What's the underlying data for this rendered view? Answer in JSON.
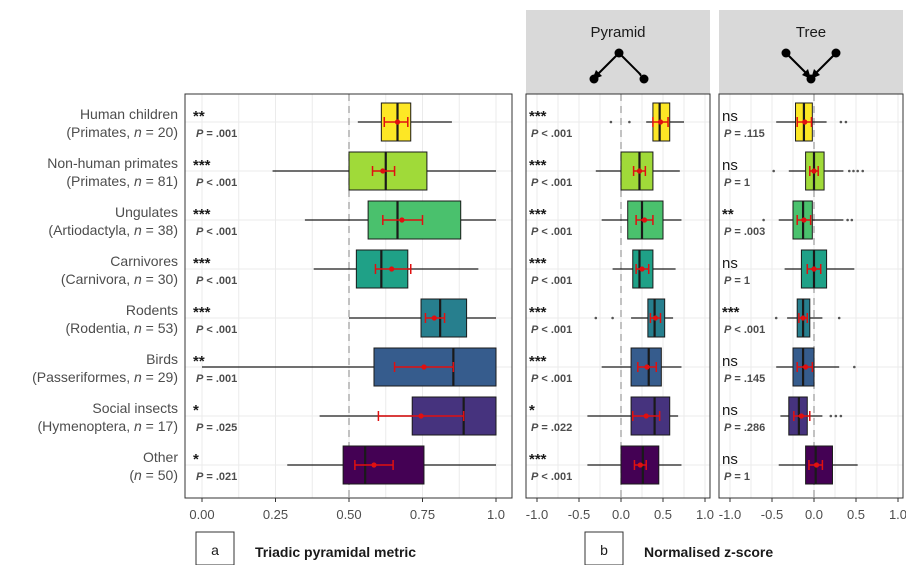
{
  "chart_data": [
    {
      "type": "box",
      "panel_label": "a",
      "xlabel": "Triadic pyramidal metric",
      "xlim": [
        0,
        1
      ],
      "xticks": [
        "0.00",
        "0.25",
        "0.50",
        "0.75",
        "1.0"
      ],
      "reference_line": 0.5,
      "categories": [
        {
          "name": "Human children",
          "group": "(Primates, ",
          "n": "n",
          "count": " = 20)",
          "sig": "**",
          "p": "P = .001",
          "whisker": [
            0.53,
            0.85
          ],
          "box": [
            0.61,
            0.71
          ],
          "median": 0.665,
          "mean": 0.665,
          "ci": [
            0.62,
            0.7
          ],
          "fill": "#fde725"
        },
        {
          "name": "Non-human primates",
          "group": "(Primates, ",
          "n": "n",
          "count": " = 81)",
          "sig": "***",
          "p": "P < .001",
          "whisker": [
            0.24,
            1.0
          ],
          "box": [
            0.5,
            0.765
          ],
          "median": 0.625,
          "mean": 0.615,
          "ci": [
            0.58,
            0.655
          ],
          "fill": "#a0da39"
        },
        {
          "name": "Ungulates",
          "group": "(Artiodactyla, ",
          "n": "n",
          "count": " = 38)",
          "sig": "***",
          "p": "P < .001",
          "whisker": [
            0.35,
            1.0
          ],
          "box": [
            0.565,
            0.88
          ],
          "median": 0.665,
          "mean": 0.68,
          "ci": [
            0.615,
            0.75
          ],
          "fill": "#4ac16d"
        },
        {
          "name": "Carnivores",
          "group": "(Carnivora, ",
          "n": "n",
          "count": " = 30)",
          "sig": "***",
          "p": "P < .001",
          "whisker": [
            0.38,
            0.94
          ],
          "box": [
            0.525,
            0.7
          ],
          "median": 0.61,
          "mean": 0.645,
          "ci": [
            0.59,
            0.71
          ],
          "fill": "#1fa187"
        },
        {
          "name": "Rodents",
          "group": "(Rodentia, ",
          "n": "n",
          "count": " = 53)",
          "sig": "***",
          "p": "P < .001",
          "whisker": [
            0.5,
            1.0
          ],
          "box": [
            0.745,
            0.9
          ],
          "median": 0.81,
          "mean": 0.79,
          "ci": [
            0.76,
            0.825
          ],
          "fill": "#277f8e"
        },
        {
          "name": "Birds",
          "group": "(Passeriformes, ",
          "n": "n",
          "count": " = 29)",
          "sig": "**",
          "p": "P = .001",
          "whisker": [
            0.0,
            1.0
          ],
          "box": [
            0.585,
            1.0
          ],
          "median": 0.855,
          "mean": 0.755,
          "ci": [
            0.655,
            0.855
          ],
          "fill": "#365c8d"
        },
        {
          "name": "Social insects",
          "group": "(Hymenoptera, ",
          "n": "n",
          "count": " = 17)",
          "sig": "*",
          "p": "P = .025",
          "whisker": [
            0.4,
            1.0
          ],
          "box": [
            0.715,
            1.0
          ],
          "median": 0.89,
          "mean": 0.745,
          "ci": [
            0.6,
            0.89
          ],
          "fill": "#46337e"
        },
        {
          "name": "Other",
          "group": "(",
          "n": "n",
          "count": " = 50)",
          "sig": "*",
          "p": "P = .021",
          "whisker": [
            0.29,
            1.0
          ],
          "box": [
            0.48,
            0.755
          ],
          "median": 0.555,
          "mean": 0.585,
          "ci": [
            0.52,
            0.65
          ],
          "fill": "#440154"
        }
      ]
    },
    {
      "type": "box",
      "panel_label": "b",
      "xlabel": "Normalised z-score",
      "facet": "Pyramid",
      "xlim": [
        -1.1,
        1.15
      ],
      "xticks": [
        "-1.0",
        "-0.5",
        "0.0",
        "0.5",
        "1.0"
      ],
      "reference_line": 0.0,
      "rows": [
        {
          "sig": "***",
          "p": "P < .001",
          "whisker": [
            0.3,
            0.75
          ],
          "box": [
            0.38,
            0.58
          ],
          "median": 0.46,
          "mean": 0.47,
          "ci": [
            0.38,
            0.56
          ],
          "outliers": [
            -0.12,
            0.1
          ],
          "fill": "#fde725"
        },
        {
          "sig": "***",
          "p": "P < .001",
          "whisker": [
            -0.3,
            0.7
          ],
          "box": [
            0.0,
            0.38
          ],
          "median": 0.22,
          "mean": 0.22,
          "ci": [
            0.15,
            0.29
          ],
          "outliers": [],
          "fill": "#a0da39"
        },
        {
          "sig": "***",
          "p": "P < .001",
          "whisker": [
            -0.23,
            0.72
          ],
          "box": [
            0.08,
            0.5
          ],
          "median": 0.25,
          "mean": 0.28,
          "ci": [
            0.18,
            0.38
          ],
          "outliers": [],
          "fill": "#4ac16d"
        },
        {
          "sig": "***",
          "p": "P < .001",
          "whisker": [
            -0.1,
            0.65
          ],
          "box": [
            0.14,
            0.38
          ],
          "median": 0.22,
          "mean": 0.25,
          "ci": [
            0.18,
            0.33
          ],
          "outliers": [],
          "fill": "#1fa187"
        },
        {
          "sig": "***",
          "p": "P < .001",
          "whisker": [
            0.12,
            0.62
          ],
          "box": [
            0.32,
            0.52
          ],
          "median": 0.4,
          "mean": 0.41,
          "ci": [
            0.35,
            0.47
          ],
          "outliers": [
            -0.3,
            -0.1
          ],
          "fill": "#277f8e"
        },
        {
          "sig": "***",
          "p": "P < .001",
          "whisker": [
            -0.23,
            0.72
          ],
          "box": [
            0.12,
            0.48
          ],
          "median": 0.33,
          "mean": 0.31,
          "ci": [
            0.2,
            0.42
          ],
          "outliers": [],
          "fill": "#365c8d"
        },
        {
          "sig": "*",
          "p": "P = .022",
          "whisker": [
            -0.4,
            0.68
          ],
          "box": [
            0.12,
            0.58
          ],
          "median": 0.4,
          "mean": 0.3,
          "ci": [
            0.14,
            0.46
          ],
          "outliers": [],
          "fill": "#46337e"
        },
        {
          "sig": "***",
          "p": "P < .001",
          "whisker": [
            -0.4,
            0.72
          ],
          "box": [
            0.0,
            0.45
          ],
          "median": 0.26,
          "mean": 0.23,
          "ci": [
            0.16,
            0.3
          ],
          "outliers": [],
          "fill": "#440154"
        }
      ]
    },
    {
      "type": "box",
      "facet": "Tree",
      "xlim": [
        -1.1,
        1.15
      ],
      "xticks": [
        "-1.0",
        "-0.5",
        "0.0",
        "0.5",
        "1.0"
      ],
      "reference_line": 0.0,
      "rows": [
        {
          "sig": "ns",
          "p": "P = .115",
          "whisker": [
            -0.45,
            0.15
          ],
          "box": [
            -0.22,
            -0.02
          ],
          "median": -0.12,
          "mean": -0.11,
          "ci": [
            -0.2,
            -0.03
          ],
          "outliers": [
            0.32,
            0.38
          ],
          "fill": "#fde725"
        },
        {
          "sig": "ns",
          "p": "P = 1",
          "whisker": [
            -0.3,
            0.35
          ],
          "box": [
            -0.1,
            0.12
          ],
          "median": 0.0,
          "mean": 0.0,
          "ci": [
            -0.05,
            0.05
          ],
          "outliers": [
            -0.48,
            0.42,
            0.47,
            0.52,
            0.58
          ],
          "fill": "#a0da39"
        },
        {
          "sig": "**",
          "p": "P = .003",
          "whisker": [
            -0.42,
            0.35
          ],
          "box": [
            -0.25,
            -0.02
          ],
          "median": -0.13,
          "mean": -0.12,
          "ci": [
            -0.2,
            -0.04
          ],
          "outliers": [
            -0.6,
            0.4,
            0.45
          ],
          "fill": "#4ac16d"
        },
        {
          "sig": "ns",
          "p": "P = 1",
          "whisker": [
            -0.35,
            0.48
          ],
          "box": [
            -0.15,
            0.15
          ],
          "median": 0.0,
          "mean": 0.0,
          "ci": [
            -0.08,
            0.08
          ],
          "outliers": [],
          "fill": "#1fa187"
        },
        {
          "sig": "***",
          "p": "P < .001",
          "whisker": [
            -0.32,
            0.1
          ],
          "box": [
            -0.2,
            -0.05
          ],
          "median": -0.13,
          "mean": -0.13,
          "ci": [
            -0.18,
            -0.08
          ],
          "outliers": [
            -0.45,
            0.3
          ],
          "fill": "#277f8e"
        },
        {
          "sig": "ns",
          "p": "P = .145",
          "whisker": [
            -0.45,
            0.3
          ],
          "box": [
            -0.25,
            0.0
          ],
          "median": -0.13,
          "mean": -0.1,
          "ci": [
            -0.2,
            -0.02
          ],
          "outliers": [
            0.48
          ],
          "fill": "#365c8d"
        },
        {
          "sig": "ns",
          "p": "P = .286",
          "whisker": [
            -0.4,
            0.1
          ],
          "box": [
            -0.3,
            -0.08
          ],
          "median": -0.18,
          "mean": -0.15,
          "ci": [
            -0.24,
            -0.05
          ],
          "outliers": [
            0.2,
            0.26,
            0.32
          ],
          "fill": "#46337e"
        },
        {
          "sig": "ns",
          "p": "P = 1",
          "whisker": [
            -0.42,
            0.52
          ],
          "box": [
            -0.1,
            0.22
          ],
          "median": 0.02,
          "mean": 0.03,
          "ci": [
            -0.06,
            0.1
          ],
          "outliers": [],
          "fill": "#440154"
        }
      ]
    }
  ]
}
